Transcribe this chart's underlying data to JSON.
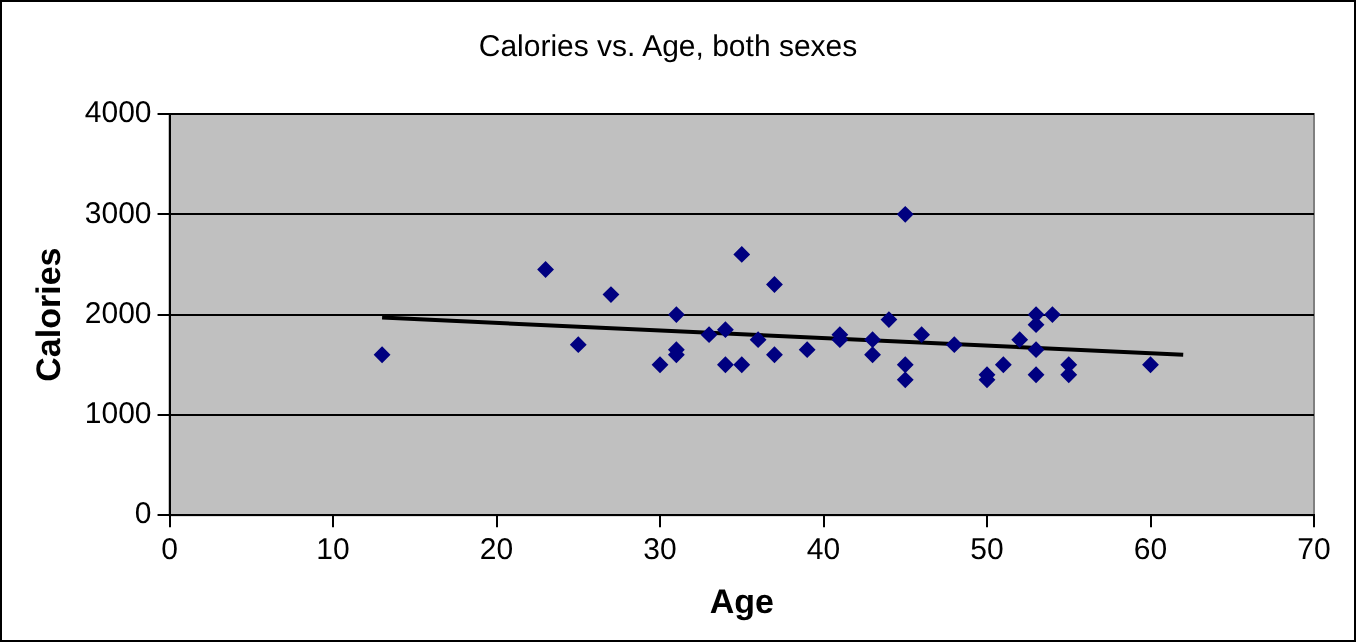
{
  "chart_data": {
    "type": "scatter",
    "title": "Calories vs. Age, both sexes",
    "xlabel": "Age",
    "ylabel": "Calories",
    "xlim": [
      0,
      70
    ],
    "xticks": [
      0,
      10,
      20,
      30,
      40,
      50,
      60,
      70
    ],
    "ylim": [
      0,
      4000
    ],
    "yticks": [
      0,
      1000,
      2000,
      3000,
      4000
    ],
    "grid": "y",
    "legend": false,
    "series": [
      {
        "marker": "diamond",
        "color": "#000080",
        "x": [
          13,
          23,
          25,
          27,
          30,
          31,
          31,
          31,
          33,
          34,
          34,
          35,
          35,
          36,
          37,
          37,
          39,
          41,
          41,
          43,
          43,
          44,
          45,
          45,
          45,
          46,
          48,
          50,
          50,
          51,
          52,
          53,
          53,
          53,
          53,
          54,
          55,
          55,
          60
        ],
        "values": [
          1600,
          2450,
          1700,
          2200,
          1500,
          2000,
          1600,
          1650,
          1800,
          1500,
          1850,
          2600,
          1500,
          1750,
          2300,
          1600,
          1650,
          1800,
          1750,
          1750,
          1600,
          1950,
          3000,
          1500,
          1350,
          1800,
          1700,
          1400,
          1350,
          1500,
          1750,
          2000,
          1900,
          1650,
          1400,
          2000,
          1500,
          1400,
          1500
        ]
      },
      {
        "type": "line",
        "marker": "none",
        "color": "#000000",
        "x": [
          13,
          62
        ],
        "values": [
          1970,
          1600
        ]
      }
    ]
  }
}
